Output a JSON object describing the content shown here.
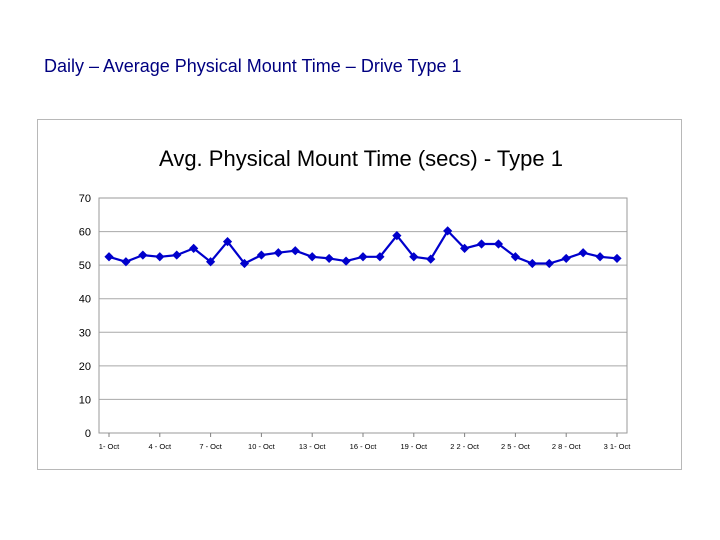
{
  "slide": {
    "title": "Daily – Average Physical Mount Time – Drive Type 1"
  },
  "chart_data": {
    "type": "line",
    "title": "Avg. Physical Mount Time (secs) - Type 1",
    "xlabel": "",
    "ylabel": "",
    "ylim": [
      0,
      70
    ],
    "yticks": [
      0,
      10,
      20,
      30,
      40,
      50,
      60,
      70
    ],
    "grid": true,
    "legend": "none",
    "x": [
      1,
      2,
      3,
      4,
      5,
      6,
      7,
      8,
      9,
      10,
      11,
      12,
      13,
      14,
      15,
      16,
      17,
      18,
      19,
      20,
      21,
      22,
      23,
      24,
      25,
      26,
      27,
      28,
      29,
      30,
      31
    ],
    "xtick_labels": [
      "1- Oct",
      "4 - Oct",
      "7 - Oct",
      "10 - Oct",
      "13 - Oct",
      "16 - Oct",
      "19 - Oct",
      "2 2 - Oct",
      "2 5 - Oct",
      "2 8 - Oct",
      "3 1- Oct"
    ],
    "xtick_positions": [
      1,
      4,
      7,
      10,
      13,
      16,
      19,
      22,
      25,
      28,
      31
    ],
    "series": [
      {
        "color": "#0000cc",
        "values": [
          52.5,
          51,
          53,
          52.5,
          53,
          55,
          51,
          57,
          50.5,
          53,
          53.7,
          54.3,
          52.5,
          52,
          51.2,
          52.5,
          52.5,
          58.8,
          52.5,
          51.8,
          60.2,
          55,
          56.3,
          56.3,
          52.5,
          50.5,
          50.5,
          52,
          53.7,
          52.5,
          52
        ]
      }
    ]
  }
}
